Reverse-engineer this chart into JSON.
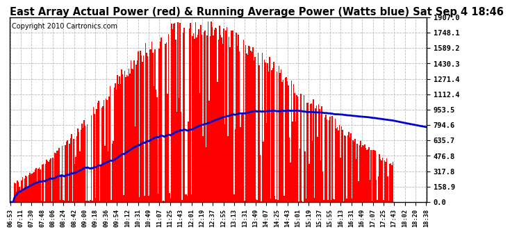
{
  "title": "East Array Actual Power (red) & Running Average Power (Watts blue) Sat Sep 4 18:46",
  "copyright": "Copyright 2010 Cartronics.com",
  "yticks": [
    0.0,
    158.9,
    317.8,
    476.8,
    635.7,
    794.6,
    953.5,
    1112.4,
    1271.4,
    1430.3,
    1589.2,
    1748.1,
    1907.0
  ],
  "ylim": [
    0,
    1907.0
  ],
  "bar_color": "#FF0000",
  "avg_color": "#0000CC",
  "bg_color": "#FFFFFF",
  "grid_color": "#BBBBBB",
  "title_fontsize": 10.5,
  "copyright_fontsize": 7,
  "xtick_fontsize": 6.2,
  "ytick_fontsize": 7.5,
  "xtick_labels": [
    "06:53",
    "07:11",
    "07:30",
    "07:48",
    "08:06",
    "08:24",
    "08:42",
    "09:00",
    "09:18",
    "09:36",
    "09:54",
    "10:12",
    "10:31",
    "10:49",
    "11:07",
    "11:25",
    "11:43",
    "12:01",
    "12:19",
    "12:37",
    "12:55",
    "13:13",
    "13:31",
    "13:49",
    "14:07",
    "14:25",
    "14:43",
    "15:01",
    "15:19",
    "15:37",
    "15:55",
    "16:13",
    "16:31",
    "16:49",
    "17:07",
    "17:25",
    "17:43",
    "18:02",
    "18:20",
    "18:38"
  ]
}
